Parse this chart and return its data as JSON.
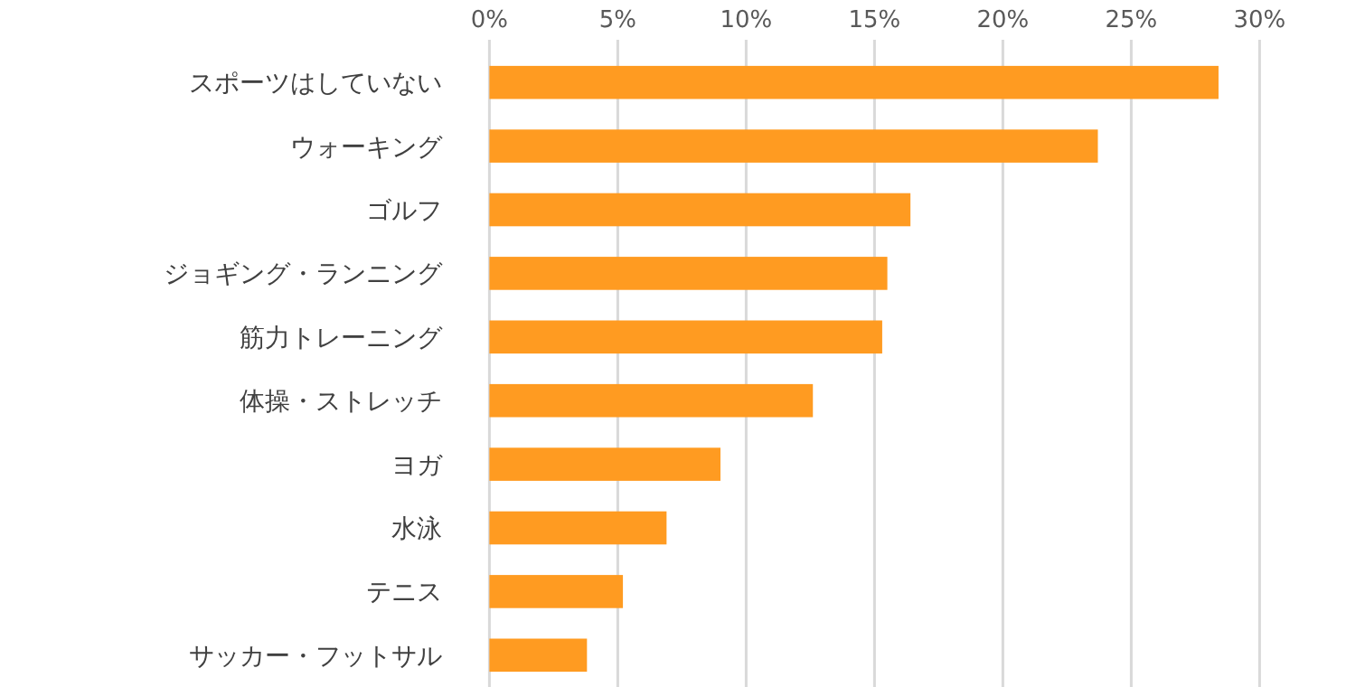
{
  "chart_data": {
    "type": "bar",
    "orientation": "horizontal",
    "categories": [
      "スポーツはしていない",
      "ウォーキング",
      "ゴルフ",
      "ジョギング・ランニング",
      "筋力トレーニング",
      "体操・ストレッチ",
      "ヨガ",
      "水泳",
      "テニス",
      "サッカー・フットサル"
    ],
    "values": [
      28.4,
      23.7,
      16.4,
      15.5,
      15.3,
      12.6,
      9.0,
      6.9,
      5.2,
      3.8
    ],
    "color": "#ff9b21",
    "xlim": [
      0,
      30
    ],
    "xticks": [
      {
        "value": 0,
        "label": "0%"
      },
      {
        "value": 5,
        "label": "5%"
      },
      {
        "value": 10,
        "label": "10%"
      },
      {
        "value": 15,
        "label": "15%"
      },
      {
        "value": 20,
        "label": "20%"
      },
      {
        "value": 25,
        "label": "25%"
      },
      {
        "value": 30,
        "label": "30%"
      }
    ],
    "grid": "x"
  }
}
